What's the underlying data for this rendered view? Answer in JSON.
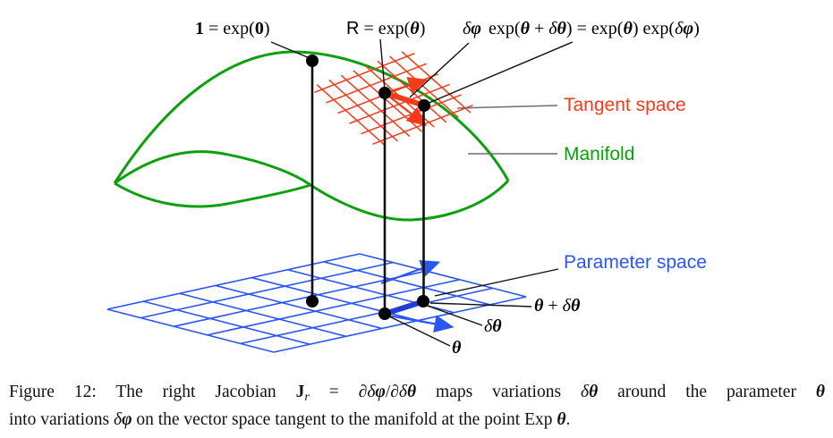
{
  "figure": {
    "annotations": {
      "identity": "1 = exp(0)",
      "r_point": "R = exp(θ)",
      "delta_phi": "δφ",
      "composition": "exp(θ + δθ) = exp(θ) exp(δφ)",
      "theta_plus_delta": "θ + δθ",
      "delta_theta": "δθ",
      "theta": "θ"
    },
    "legend": {
      "tangent_space": {
        "label": "Tangent space",
        "color": "#f63a1c"
      },
      "manifold": {
        "label": "Manifold",
        "color": "#0aa10a"
      },
      "parameter_space": {
        "label": "Parameter space",
        "color": "#2b55f4"
      }
    },
    "colors": {
      "tangent_grid": "#f63a1c",
      "manifold_curve": "#0aa10a",
      "parameter_grid": "#2b55f4",
      "delta_theta_vector": "#1d3fd6",
      "points_and_lines": "#000000"
    }
  },
  "caption": {
    "line1": [
      {
        "text": "Figure 12: The right Jacobian ",
        "style": "plain"
      },
      {
        "text": "J",
        "style": "bold"
      },
      {
        "text": "r",
        "style": "sub"
      },
      {
        "text": " = ",
        "style": "plain"
      },
      {
        "text": "∂δφ/∂δθ",
        "style": "math"
      },
      {
        "text": " maps variations ",
        "style": "plain"
      },
      {
        "text": "δθ",
        "style": "math"
      },
      {
        "text": " around the parameter ",
        "style": "plain"
      },
      {
        "text": "θ",
        "style": "math"
      }
    ],
    "line2": [
      {
        "text": "into variations ",
        "style": "plain"
      },
      {
        "text": "δφ",
        "style": "math"
      },
      {
        "text": " on the vector space tangent to the manifold at the point Exp ",
        "style": "plain"
      },
      {
        "text": "θ",
        "style": "math"
      },
      {
        "text": ".",
        "style": "plain"
      }
    ]
  }
}
